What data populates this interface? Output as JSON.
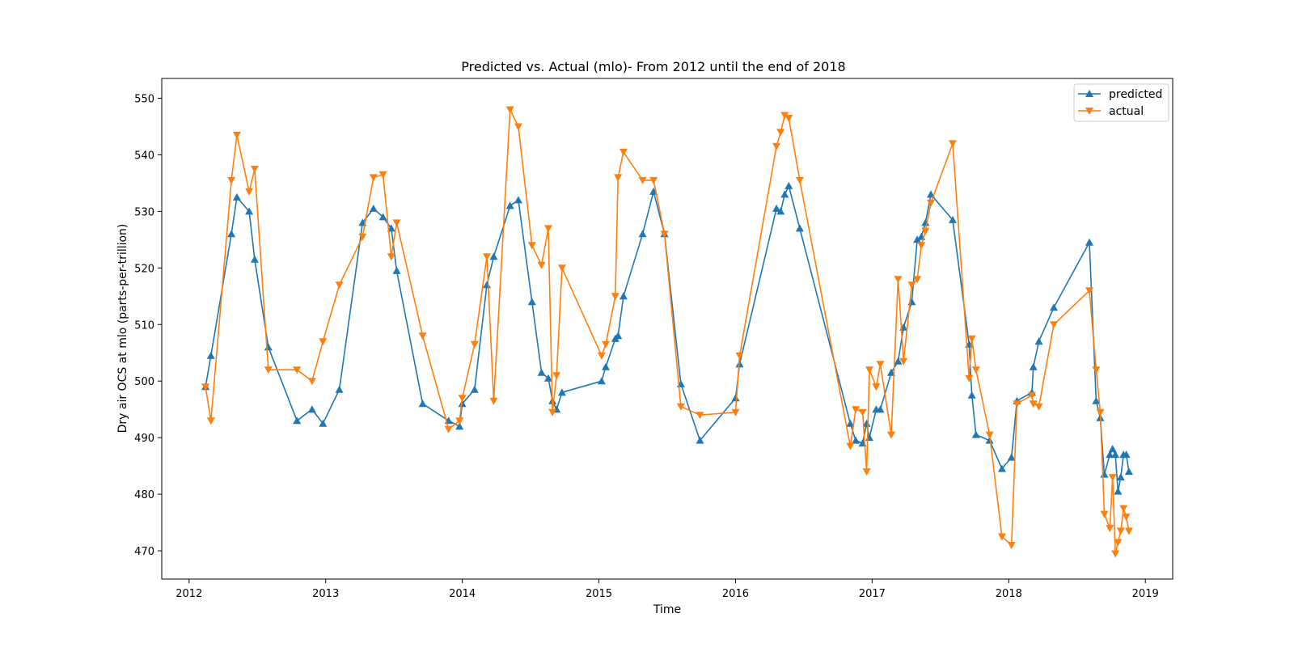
{
  "chart_data": {
    "type": "line",
    "title": "Predicted vs. Actual (mlo)- From 2012 until the end of 2018",
    "xlabel": "Time",
    "ylabel": "Dry air OCS at mlo (parts-per-trillion)",
    "xlim": [
      2011.8,
      2019.2
    ],
    "ylim": [
      465,
      553.5
    ],
    "x_ticks": [
      2012,
      2013,
      2014,
      2015,
      2016,
      2017,
      2018,
      2019
    ],
    "x_tick_labels": [
      "2012",
      "2013",
      "2014",
      "2015",
      "2016",
      "2017",
      "2018",
      "2019"
    ],
    "y_ticks": [
      470,
      480,
      490,
      500,
      510,
      520,
      530,
      540,
      550
    ],
    "y_tick_labels": [
      "470",
      "480",
      "490",
      "500",
      "510",
      "520",
      "530",
      "540",
      "550"
    ],
    "legend_position": "top-right",
    "series": [
      {
        "name": "predicted",
        "color": "#1f77b4",
        "marker": "triangle-up",
        "x": [
          2012.12,
          2012.16,
          2012.31,
          2012.35,
          2012.44,
          2012.48,
          2012.58,
          2012.79,
          2012.9,
          2012.98,
          2013.1,
          2013.27,
          2013.35,
          2013.42,
          2013.48,
          2013.52,
          2013.71,
          2013.9,
          2013.98,
          2014.0,
          2014.09,
          2014.18,
          2014.23,
          2014.35,
          2014.41,
          2014.51,
          2014.58,
          2014.63,
          2014.66,
          2014.69,
          2014.73,
          2015.02,
          2015.05,
          2015.12,
          2015.14,
          2015.18,
          2015.32,
          2015.4,
          2015.48,
          2015.6,
          2015.74,
          2016.0,
          2016.03,
          2016.3,
          2016.33,
          2016.36,
          2016.39,
          2016.47,
          2016.84,
          2016.88,
          2016.93,
          2016.96,
          2016.98,
          2017.03,
          2017.06,
          2017.14,
          2017.19,
          2017.23,
          2017.29,
          2017.33,
          2017.36,
          2017.39,
          2017.43,
          2017.59,
          2017.71,
          2017.73,
          2017.76,
          2017.86,
          2017.95,
          2018.02,
          2018.06,
          2018.17,
          2018.18,
          2018.22,
          2018.33,
          2018.59,
          2018.64,
          2018.67,
          2018.7,
          2018.74,
          2018.76,
          2018.78,
          2018.8,
          2018.82,
          2018.84,
          2018.86,
          2018.88
        ],
        "y": [
          499.0,
          504.5,
          526.0,
          532.5,
          530.0,
          521.5,
          506.0,
          493.0,
          495.0,
          492.5,
          498.5,
          528.0,
          530.5,
          529.0,
          527.0,
          519.5,
          496.0,
          493.0,
          492.0,
          496.0,
          498.5,
          517.0,
          522.0,
          531.0,
          532.0,
          514.0,
          501.5,
          500.5,
          496.5,
          495.0,
          498.0,
          500.0,
          502.5,
          507.5,
          508.0,
          515.0,
          526.0,
          533.5,
          526.0,
          499.5,
          489.5,
          497.0,
          503.0,
          530.5,
          530.0,
          533.0,
          534.5,
          527.0,
          492.5,
          489.5,
          489.0,
          492.5,
          490.0,
          495.0,
          495.0,
          501.5,
          503.5,
          509.5,
          514.0,
          525.0,
          525.5,
          528.0,
          533.0,
          528.5,
          506.5,
          497.5,
          490.5,
          489.5,
          484.5,
          486.5,
          496.5,
          498.0,
          502.5,
          507.0,
          513.0,
          524.5,
          496.5,
          493.5,
          483.5,
          487.0,
          488.0,
          487.0,
          480.5,
          483.0,
          487.0,
          487.0,
          484.0
        ]
      },
      {
        "name": "actual",
        "color": "#ff7f0e",
        "marker": "triangle-down",
        "x": [
          2012.12,
          2012.16,
          2012.31,
          2012.35,
          2012.44,
          2012.48,
          2012.58,
          2012.79,
          2012.9,
          2012.98,
          2013.1,
          2013.27,
          2013.35,
          2013.42,
          2013.48,
          2013.52,
          2013.71,
          2013.9,
          2013.98,
          2014.0,
          2014.09,
          2014.18,
          2014.23,
          2014.35,
          2014.41,
          2014.51,
          2014.58,
          2014.63,
          2014.66,
          2014.69,
          2014.73,
          2015.02,
          2015.05,
          2015.12,
          2015.14,
          2015.18,
          2015.32,
          2015.4,
          2015.48,
          2015.6,
          2015.74,
          2016.0,
          2016.03,
          2016.3,
          2016.33,
          2016.36,
          2016.39,
          2016.47,
          2016.84,
          2016.88,
          2016.93,
          2016.96,
          2016.98,
          2017.03,
          2017.06,
          2017.14,
          2017.19,
          2017.23,
          2017.29,
          2017.33,
          2017.36,
          2017.39,
          2017.43,
          2017.59,
          2017.71,
          2017.73,
          2017.76,
          2017.86,
          2017.95,
          2018.02,
          2018.06,
          2018.17,
          2018.18,
          2018.22,
          2018.33,
          2018.59,
          2018.64,
          2018.67,
          2018.7,
          2018.74,
          2018.76,
          2018.78,
          2018.8,
          2018.82,
          2018.84,
          2018.86,
          2018.88
        ],
        "y": [
          499.0,
          493.0,
          535.5,
          543.5,
          533.5,
          537.5,
          502.0,
          502.0,
          500.0,
          507.0,
          517.0,
          525.5,
          536.0,
          536.5,
          522.0,
          528.0,
          508.0,
          491.5,
          493.0,
          497.0,
          506.5,
          522.0,
          496.5,
          548.0,
          545.0,
          524.0,
          520.5,
          527.0,
          494.5,
          501.0,
          520.0,
          504.5,
          506.5,
          515.0,
          536.0,
          540.5,
          535.5,
          535.5,
          526.0,
          495.5,
          494.0,
          494.5,
          504.5,
          541.5,
          544.0,
          547.0,
          546.5,
          535.5,
          488.5,
          495.0,
          494.5,
          484.0,
          502.0,
          499.0,
          503.0,
          490.5,
          518.0,
          503.5,
          517.0,
          518.0,
          524.0,
          526.5,
          531.5,
          542.0,
          500.5,
          507.5,
          502.0,
          490.5,
          472.5,
          471.0,
          496.0,
          497.5,
          496.0,
          495.5,
          510.0,
          516.0,
          502.0,
          494.5,
          476.5,
          474.0,
          483.0,
          469.5,
          471.5,
          473.5,
          477.5,
          476.0,
          473.5
        ]
      }
    ]
  }
}
